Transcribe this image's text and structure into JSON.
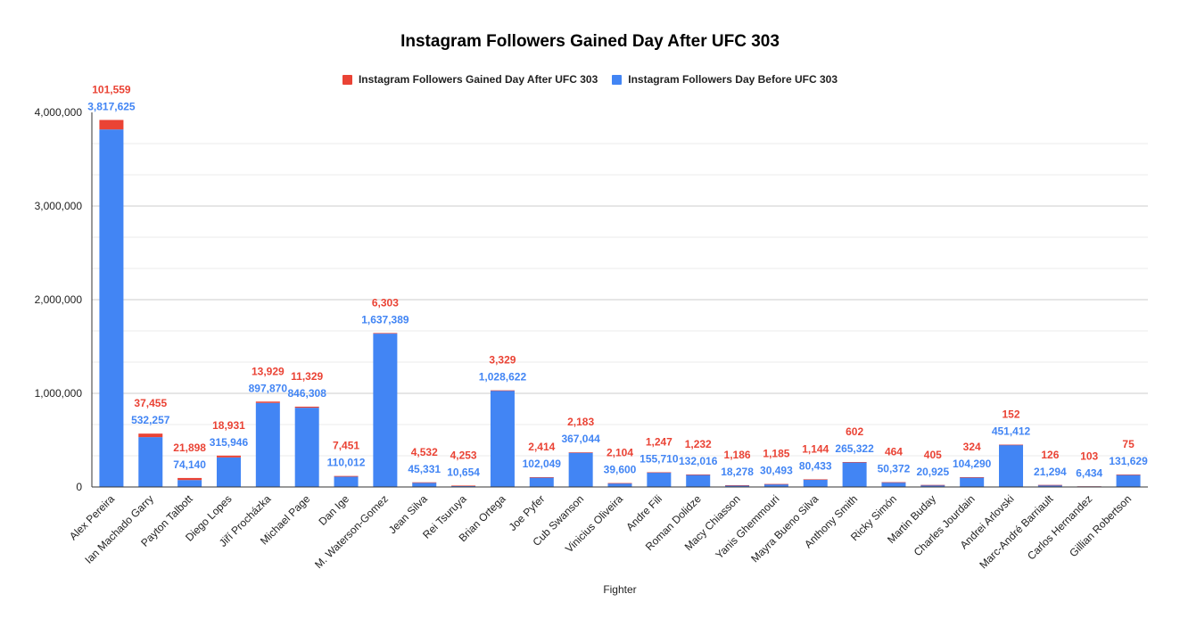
{
  "colors": {
    "gained": "#EA4335",
    "before": "#4285F4",
    "grid": "#e0e0e0",
    "axis": "#333333"
  },
  "chart_data": {
    "type": "bar",
    "stacked": true,
    "title": "Instagram Followers Gained Day After UFC 303",
    "xlabel": "Fighter",
    "ylabel": "",
    "ylim": [
      0,
      4000000
    ],
    "yticks": [
      "0",
      "1,000,000",
      "2,000,000",
      "3,000,000",
      "4,000,000"
    ],
    "grid": true,
    "legend_position": "top",
    "categories": [
      "Alex Pereira",
      "Ian Machado Garry",
      "Payton Talbott",
      "Diego Lopes",
      "Jiří Procházka",
      "Michael Page",
      "Dan Ige",
      "M. Waterson-Gomez",
      "Jean Silva",
      "Rei Tsuruya",
      "Brian Ortega",
      "Joe Pyfer",
      "Cub Swanson",
      "Vinicius Oliveira",
      "Andre Fili",
      "Roman Dolidze",
      "Macy Chiasson",
      "Yanis Ghemmouri",
      "Mayra Bueno Silva",
      "Anthony Smith",
      "Ricky Simón",
      "Martin Buday",
      "Charles Jourdain",
      "Andrei Arlovski",
      "Marc-André Barriault",
      "Carlos Hernandez",
      "Gillian Robertson"
    ],
    "series": [
      {
        "name": "Instagram Followers Day Before UFC 303",
        "color": "#4285F4",
        "values": [
          3817625,
          532257,
          74140,
          315946,
          897870,
          846308,
          110012,
          1637389,
          45331,
          10654,
          1028622,
          102049,
          367044,
          39600,
          155710,
          132016,
          18278,
          30493,
          80433,
          265322,
          50372,
          20925,
          104290,
          451412,
          21294,
          6434,
          131629
        ],
        "labels": [
          "3,817,625",
          "532,257",
          "74,140",
          "315,946",
          "897,870",
          "846,308",
          "110,012",
          "1,637,389",
          "45,331",
          "10,654",
          "1,028,622",
          "102,049",
          "367,044",
          "39,600",
          "155,710",
          "132,016",
          "18,278",
          "30,493",
          "80,433",
          "265,322",
          "50,372",
          "20,925",
          "104,290",
          "451,412",
          "21,294",
          "6,434",
          "131,629"
        ]
      },
      {
        "name": "Instagram Followers Gained Day After UFC 303",
        "color": "#EA4335",
        "values": [
          101559,
          37455,
          21898,
          18931,
          13929,
          11329,
          7451,
          6303,
          4532,
          4253,
          3329,
          2414,
          2183,
          2104,
          1247,
          1232,
          1186,
          1185,
          1144,
          602,
          464,
          405,
          324,
          152,
          126,
          103,
          75
        ],
        "labels": [
          "101,559",
          "37,455",
          "21,898",
          "18,931",
          "13,929",
          "11,329",
          "7,451",
          "6,303",
          "4,532",
          "4,253",
          "3,329",
          "2,414",
          "2,183",
          "2,104",
          "1,247",
          "1,232",
          "1,186",
          "1,185",
          "1,144",
          "602",
          "464",
          "405",
          "324",
          "152",
          "126",
          "103",
          "75"
        ]
      }
    ],
    "legend": [
      {
        "label": "Instagram Followers Gained Day After UFC 303",
        "color": "#EA4335"
      },
      {
        "label": "Instagram Followers Day Before UFC 303",
        "color": "#4285F4"
      }
    ]
  }
}
